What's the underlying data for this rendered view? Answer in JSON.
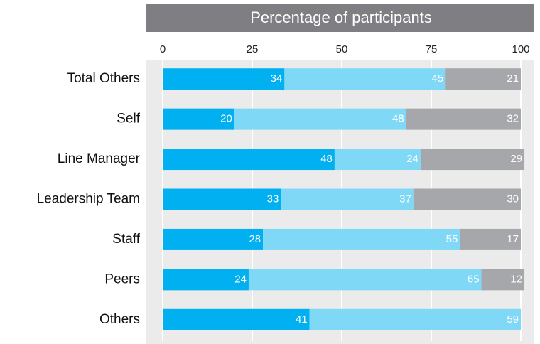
{
  "chart_data": {
    "type": "stacked-bar-horizontal",
    "title": "Percentage of participants",
    "categories": [
      "Total Others",
      "Self",
      "Line Manager",
      "Leadership Team",
      "Staff",
      "Peers",
      "Others"
    ],
    "series": [
      {
        "color": "#00b0f0",
        "values": [
          34,
          20,
          48,
          33,
          28,
          24,
          41
        ]
      },
      {
        "color": "#80d8f7",
        "values": [
          45,
          48,
          24,
          37,
          55,
          65,
          59
        ]
      },
      {
        "color": "#a5a7aa",
        "values": [
          21,
          32,
          29,
          30,
          17,
          12,
          null
        ]
      }
    ],
    "xlim": [
      0,
      100
    ],
    "xticks": [
      0,
      25,
      50,
      75,
      100
    ],
    "grid": true
  }
}
